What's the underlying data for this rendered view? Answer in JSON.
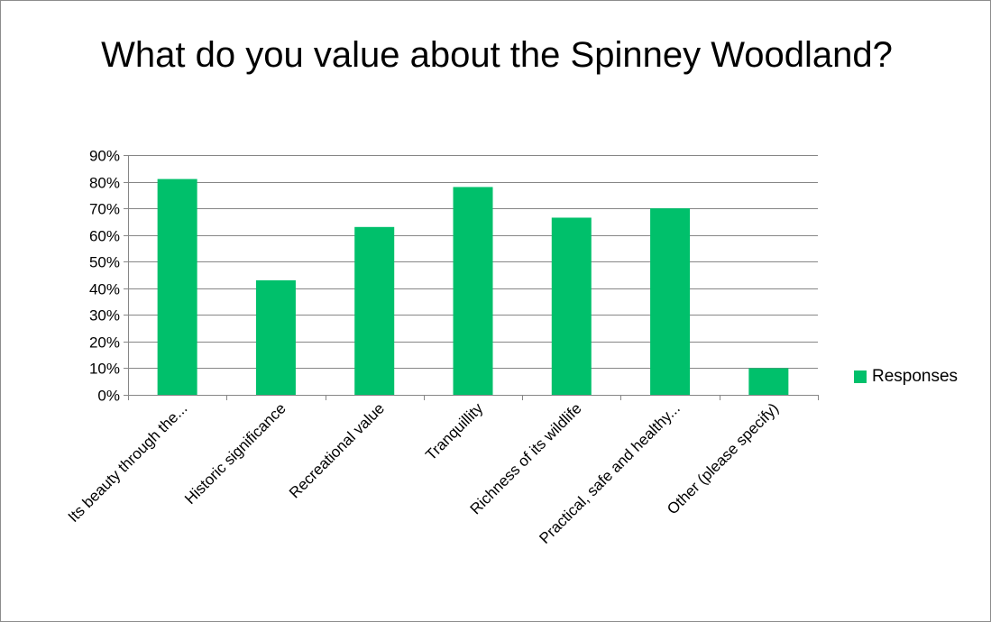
{
  "chart_data": {
    "type": "bar",
    "title": "What do you value about the Spinney Woodland?",
    "xlabel": "",
    "ylabel": "",
    "categories": [
      "Its beauty through the...",
      "Historic significance",
      "Recreational value",
      "Tranquillity",
      "Richness of its wildlife",
      "Practical, safe and healthy...",
      "Other (please specify)"
    ],
    "series": [
      {
        "name": "Responses",
        "values": [
          0.81,
          0.43,
          0.63,
          0.78,
          0.665,
          0.7,
          0.1
        ]
      }
    ],
    "ylim": [
      0,
      0.9
    ],
    "yticks": [
      "0%",
      "10%",
      "20%",
      "30%",
      "40%",
      "50%",
      "60%",
      "70%",
      "80%",
      "90%"
    ],
    "grid": true,
    "legend_position": "right",
    "bar_color": "#00c06b"
  }
}
